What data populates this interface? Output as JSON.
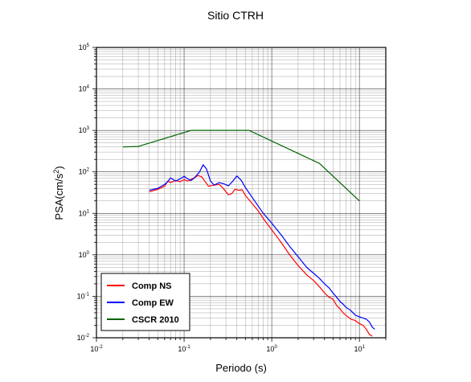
{
  "chart_data": {
    "type": "line",
    "title": "Sitio CTRH",
    "xlabel": "Periodo (s)",
    "ylabel": {
      "base": "PSA(cm/s",
      "sup": "2",
      "close": ")"
    },
    "x_scale": "log",
    "y_scale": "log",
    "xlim": [
      0.01,
      20
    ],
    "ylim": [
      0.01,
      100000
    ],
    "grid": true,
    "legend_position": "bottom-left",
    "x_ticks": [
      {
        "base": "10",
        "exp": "-2",
        "value": 0.01
      },
      {
        "base": "10",
        "exp": "-1",
        "value": 0.1
      },
      {
        "base": "10",
        "exp": "0",
        "value": 1
      },
      {
        "base": "10",
        "exp": "1",
        "value": 10
      }
    ],
    "y_ticks": [
      {
        "base": "10",
        "exp": "-2",
        "value": 0.01
      },
      {
        "base": "10",
        "exp": "-1",
        "value": 0.1
      },
      {
        "base": "10",
        "exp": "0",
        "value": 1
      },
      {
        "base": "10",
        "exp": "1",
        "value": 10
      },
      {
        "base": "10",
        "exp": "2",
        "value": 100
      },
      {
        "base": "10",
        "exp": "3",
        "value": 1000
      },
      {
        "base": "10",
        "exp": "4",
        "value": 10000
      },
      {
        "base": "10",
        "exp": "5",
        "value": 100000
      }
    ],
    "series": [
      {
        "name": "Comp NS",
        "color": "#ff0000",
        "points": [
          [
            0.04,
            33
          ],
          [
            0.05,
            38
          ],
          [
            0.06,
            45
          ],
          [
            0.065,
            60
          ],
          [
            0.07,
            55
          ],
          [
            0.08,
            62
          ],
          [
            0.09,
            58
          ],
          [
            0.1,
            65
          ],
          [
            0.11,
            60
          ],
          [
            0.12,
            66
          ],
          [
            0.13,
            72
          ],
          [
            0.145,
            82
          ],
          [
            0.16,
            75
          ],
          [
            0.17,
            62
          ],
          [
            0.19,
            45
          ],
          [
            0.22,
            48
          ],
          [
            0.25,
            50
          ],
          [
            0.28,
            40
          ],
          [
            0.32,
            28
          ],
          [
            0.35,
            30
          ],
          [
            0.38,
            38
          ],
          [
            0.42,
            36
          ],
          [
            0.46,
            37
          ],
          [
            0.5,
            27
          ],
          [
            0.6,
            17
          ],
          [
            0.7,
            11.5
          ],
          [
            0.8,
            7.5
          ],
          [
            1.0,
            4.0
          ],
          [
            1.3,
            1.9
          ],
          [
            1.6,
            1.0
          ],
          [
            2.0,
            0.55
          ],
          [
            2.5,
            0.33
          ],
          [
            3.0,
            0.24
          ],
          [
            3.5,
            0.17
          ],
          [
            4.0,
            0.12
          ],
          [
            4.5,
            0.095
          ],
          [
            5.0,
            0.085
          ],
          [
            5.5,
            0.06
          ],
          [
            6.0,
            0.05
          ],
          [
            6.5,
            0.04
          ],
          [
            7.0,
            0.035
          ],
          [
            8.0,
            0.028
          ],
          [
            9.0,
            0.026
          ],
          [
            10,
            0.022
          ],
          [
            11,
            0.02
          ],
          [
            12,
            0.016
          ],
          [
            13,
            0.012
          ],
          [
            14,
            0.011
          ]
        ]
      },
      {
        "name": "Comp EW",
        "color": "#0000ff",
        "points": [
          [
            0.04,
            36
          ],
          [
            0.05,
            40
          ],
          [
            0.06,
            50
          ],
          [
            0.065,
            58
          ],
          [
            0.07,
            72
          ],
          [
            0.08,
            60
          ],
          [
            0.09,
            68
          ],
          [
            0.1,
            78
          ],
          [
            0.11,
            68
          ],
          [
            0.12,
            62
          ],
          [
            0.13,
            70
          ],
          [
            0.15,
            100
          ],
          [
            0.165,
            148
          ],
          [
            0.18,
            118
          ],
          [
            0.2,
            60
          ],
          [
            0.22,
            48
          ],
          [
            0.25,
            55
          ],
          [
            0.28,
            52
          ],
          [
            0.32,
            46
          ],
          [
            0.36,
            60
          ],
          [
            0.4,
            80
          ],
          [
            0.45,
            62
          ],
          [
            0.5,
            42
          ],
          [
            0.6,
            24
          ],
          [
            0.7,
            15
          ],
          [
            0.8,
            10
          ],
          [
            1.0,
            5.8
          ],
          [
            1.3,
            2.9
          ],
          [
            1.6,
            1.6
          ],
          [
            2.0,
            0.9
          ],
          [
            2.5,
            0.5
          ],
          [
            3.0,
            0.36
          ],
          [
            3.5,
            0.27
          ],
          [
            4.0,
            0.2
          ],
          [
            4.5,
            0.16
          ],
          [
            5.0,
            0.12
          ],
          [
            5.5,
            0.095
          ],
          [
            6.0,
            0.075
          ],
          [
            6.5,
            0.065
          ],
          [
            7.0,
            0.055
          ],
          [
            8.0,
            0.045
          ],
          [
            9.0,
            0.035
          ],
          [
            10,
            0.032
          ],
          [
            11,
            0.03
          ],
          [
            12,
            0.028
          ],
          [
            13,
            0.024
          ],
          [
            14,
            0.018
          ],
          [
            15,
            0.016
          ]
        ]
      },
      {
        "name": "CSCR 2010",
        "color": "#006400",
        "points": [
          [
            0.02,
            400
          ],
          [
            0.03,
            410
          ],
          [
            0.12,
            1000
          ],
          [
            0.55,
            1000
          ],
          [
            3.5,
            160
          ],
          [
            10,
            20
          ]
        ]
      }
    ]
  }
}
